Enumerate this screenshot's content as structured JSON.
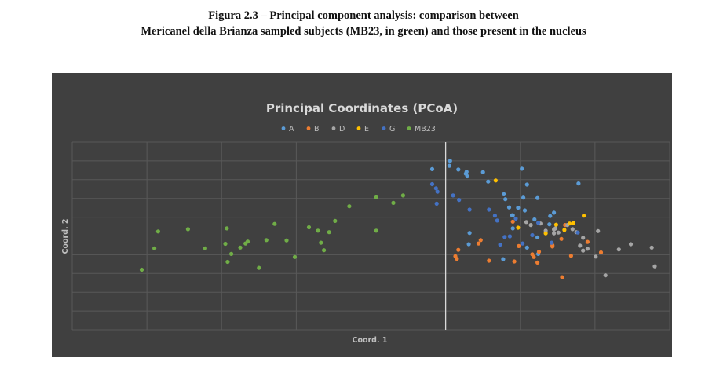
{
  "caption": {
    "line1": "Figura 2.3 – Principal component analysis: comparison between",
    "line2": "Mericanel della Brianza sampled subjects (MB23, in green) and those present in the nucleus"
  },
  "chart_data": {
    "type": "scatter",
    "title": "Principal Coordinates (PCoA)",
    "xlabel": "Coord. 1",
    "ylabel": "Coord. 2",
    "grid": true,
    "legend_position": "top-center",
    "xlim": [
      -0.5,
      0.3
    ],
    "ylim": [
      -0.2,
      0.3
    ],
    "series": [
      {
        "name": "A",
        "color": "#5b9bd5",
        "points": [
          [
            -0.018,
            0.228
          ],
          [
            0.005,
            0.237
          ],
          [
            0.006,
            0.25
          ],
          [
            0.017,
            0.227
          ],
          [
            0.028,
            0.221
          ],
          [
            0.027,
            0.216
          ],
          [
            0.029,
            0.209
          ],
          [
            0.05,
            0.22
          ],
          [
            0.057,
            0.195
          ],
          [
            0.078,
            0.161
          ],
          [
            0.08,
            0.148
          ],
          [
            0.102,
            0.229
          ],
          [
            0.109,
            0.187
          ],
          [
            0.104,
            0.152
          ],
          [
            0.123,
            0.151
          ],
          [
            0.178,
            0.19
          ],
          [
            0.032,
            0.058
          ],
          [
            0.031,
            0.028
          ],
          [
            0.085,
            0.126
          ],
          [
            0.089,
            0.105
          ],
          [
            0.106,
            0.118
          ],
          [
            0.097,
            0.125
          ],
          [
            0.09,
            0.07
          ],
          [
            0.09,
            0.105
          ],
          [
            0.119,
            0.094
          ],
          [
            0.14,
            0.103
          ],
          [
            0.077,
            -0.012
          ],
          [
            0.109,
            0.019
          ],
          [
            0.123,
            0.046
          ],
          [
            0.124,
            0.002
          ],
          [
            0.139,
            0.081
          ],
          [
            0.145,
            0.112
          ]
        ]
      },
      {
        "name": "B",
        "color": "#ed7d31",
        "points": [
          [
            0.013,
            -0.004
          ],
          [
            0.015,
            -0.011
          ],
          [
            0.017,
            0.013
          ],
          [
            0.047,
            0.039
          ],
          [
            0.044,
            0.03
          ],
          [
            0.058,
            -0.016
          ],
          [
            0.092,
            -0.018
          ],
          [
            0.09,
            0.088
          ],
          [
            0.098,
            0.023
          ],
          [
            0.125,
            0.008
          ],
          [
            0.118,
            -0.006
          ],
          [
            0.123,
            -0.021
          ],
          [
            0.143,
            0.025
          ],
          [
            0.143,
            0.022
          ],
          [
            0.155,
            0.042
          ],
          [
            0.16,
            0.079
          ],
          [
            0.168,
            -0.003
          ],
          [
            0.19,
            0.034
          ],
          [
            0.208,
            0.006
          ],
          [
            0.156,
            -0.06
          ],
          [
            0.116,
            0.001
          ]
        ]
      },
      {
        "name": "D",
        "color": "#a5a5a5",
        "points": [
          [
            0.108,
            0.087
          ],
          [
            0.114,
            0.079
          ],
          [
            0.127,
            0.083
          ],
          [
            0.134,
            0.064
          ],
          [
            0.145,
            0.067
          ],
          [
            0.145,
            0.057
          ],
          [
            0.147,
            0.07
          ],
          [
            0.151,
            0.059
          ],
          [
            0.163,
            0.079
          ],
          [
            0.17,
            0.068
          ],
          [
            0.175,
            0.06
          ],
          [
            0.184,
            0.045
          ],
          [
            0.18,
            0.024
          ],
          [
            0.184,
            0.011
          ],
          [
            0.19,
            0.016
          ],
          [
            0.204,
            0.063
          ],
          [
            0.214,
            -0.055
          ],
          [
            0.232,
            0.014
          ],
          [
            0.248,
            0.028
          ],
          [
            0.276,
            0.019
          ],
          [
            0.28,
            -0.031
          ],
          [
            0.201,
            -0.005
          ]
        ]
      },
      {
        "name": "E",
        "color": "#ffc000",
        "points": [
          [
            0.067,
            0.198
          ],
          [
            0.097,
            0.072
          ],
          [
            0.134,
            0.057
          ],
          [
            0.148,
            0.08
          ],
          [
            0.166,
            0.083
          ],
          [
            0.185,
            0.104
          ],
          [
            0.171,
            0.085
          ],
          [
            0.159,
            0.066
          ]
        ]
      },
      {
        "name": "G",
        "color": "#4472c4",
        "points": [
          [
            -0.018,
            0.188
          ],
          [
            -0.013,
            0.177
          ],
          [
            -0.011,
            0.168
          ],
          [
            -0.012,
            0.136
          ],
          [
            0.01,
            0.158
          ],
          [
            0.018,
            0.146
          ],
          [
            0.032,
            0.12
          ],
          [
            0.058,
            0.12
          ],
          [
            0.066,
            0.104
          ],
          [
            0.069,
            0.091
          ],
          [
            0.094,
            0.096
          ],
          [
            0.124,
            0.085
          ],
          [
            0.103,
            0.03
          ],
          [
            0.086,
            0.049
          ],
          [
            0.116,
            0.052
          ],
          [
            0.073,
            0.027
          ],
          [
            0.079,
            0.047
          ],
          [
            0.142,
            0.032
          ],
          [
            0.177,
            0.059
          ]
        ]
      },
      {
        "name": "MB23",
        "color": "#70ad47",
        "points": [
          [
            -0.407,
            -0.04
          ],
          [
            -0.39,
            0.017
          ],
          [
            -0.385,
            0.062
          ],
          [
            -0.345,
            0.068
          ],
          [
            -0.322,
            0.017
          ],
          [
            -0.295,
            0.029
          ],
          [
            -0.293,
            0.07
          ],
          [
            -0.292,
            -0.019
          ],
          [
            -0.287,
            0.002
          ],
          [
            -0.275,
            0.019
          ],
          [
            -0.268,
            0.03
          ],
          [
            -0.265,
            0.035
          ],
          [
            -0.24,
            0.039
          ],
          [
            -0.229,
            0.082
          ],
          [
            -0.213,
            0.038
          ],
          [
            -0.202,
            -0.006
          ],
          [
            -0.183,
            0.073
          ],
          [
            -0.171,
            0.064
          ],
          [
            -0.167,
            0.032
          ],
          [
            -0.156,
            0.06
          ],
          [
            -0.163,
            0.012
          ],
          [
            -0.148,
            0.09
          ],
          [
            -0.129,
            0.129
          ],
          [
            -0.093,
            0.153
          ],
          [
            -0.093,
            0.064
          ],
          [
            -0.07,
            0.138
          ],
          [
            -0.057,
            0.158
          ],
          [
            -0.25,
            -0.035
          ]
        ]
      }
    ]
  }
}
